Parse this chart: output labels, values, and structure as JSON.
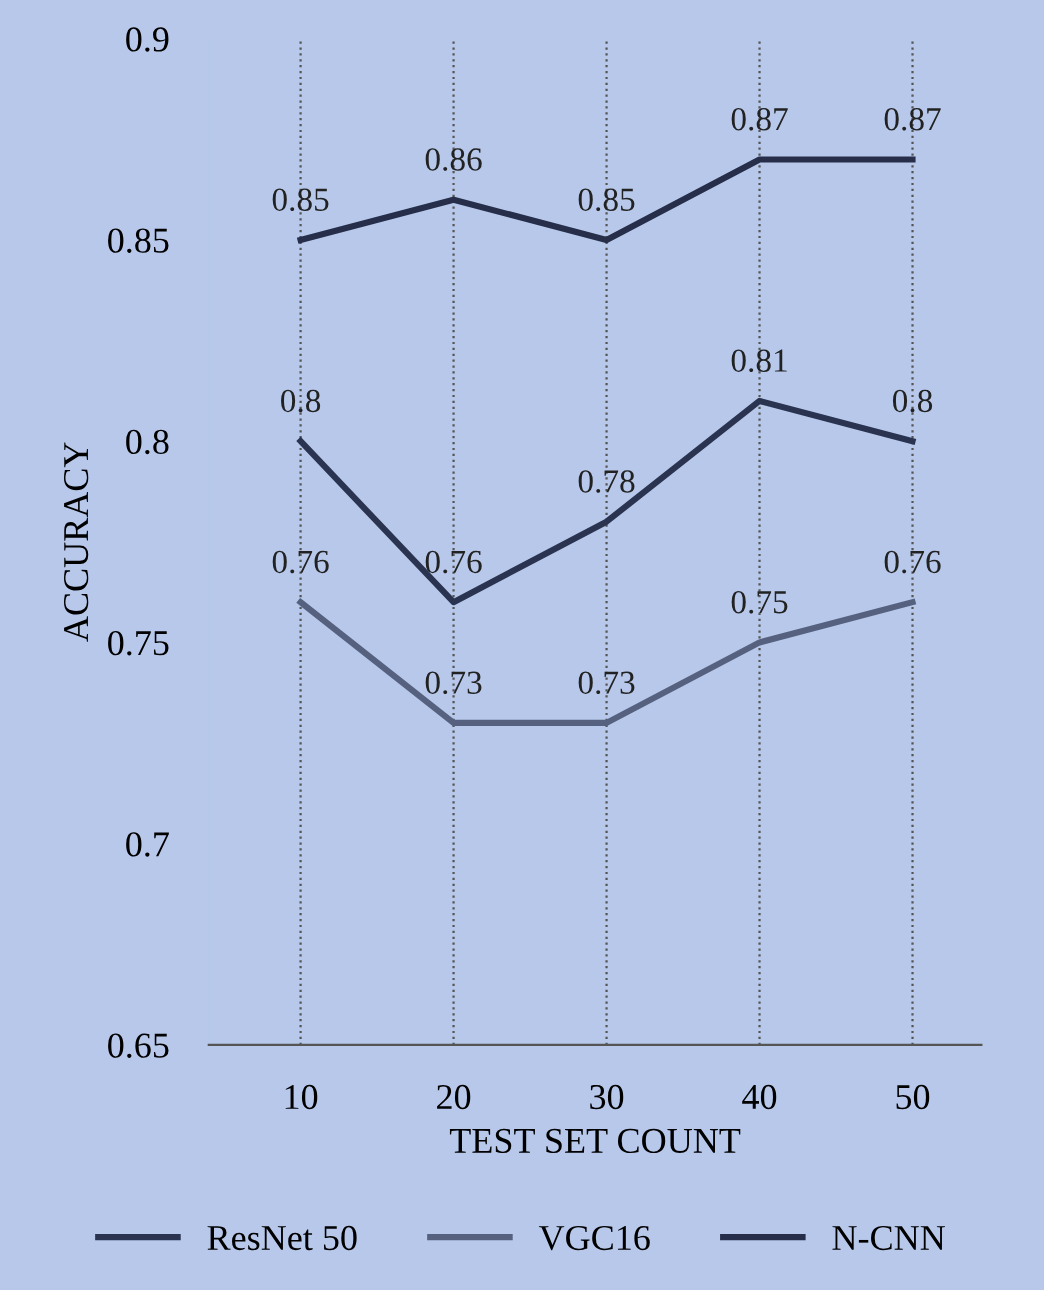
{
  "chart_data": {
    "type": "line",
    "xlabel": "TEST SET COUNT",
    "ylabel": "ACCURACY",
    "categories": [
      "10",
      "20",
      "30",
      "40",
      "50"
    ],
    "series": [
      {
        "name": "ResNet 50",
        "color": "#2a3350",
        "values": [
          0.8,
          0.76,
          0.78,
          0.81,
          0.8
        ]
      },
      {
        "name": "VGC16",
        "color": "#56617f",
        "values": [
          0.76,
          0.73,
          0.73,
          0.75,
          0.76
        ]
      },
      {
        "name": "N-CNN",
        "color": "#262e4a",
        "values": [
          0.85,
          0.86,
          0.85,
          0.87,
          0.87
        ]
      }
    ],
    "ylim": [
      0.65,
      0.9
    ],
    "yticks": [
      0.65,
      0.7,
      0.75,
      0.8,
      0.85,
      0.9
    ],
    "grid": "x",
    "legend": "bottom",
    "data_labels": true,
    "line_style": "solid",
    "marker": "none"
  }
}
